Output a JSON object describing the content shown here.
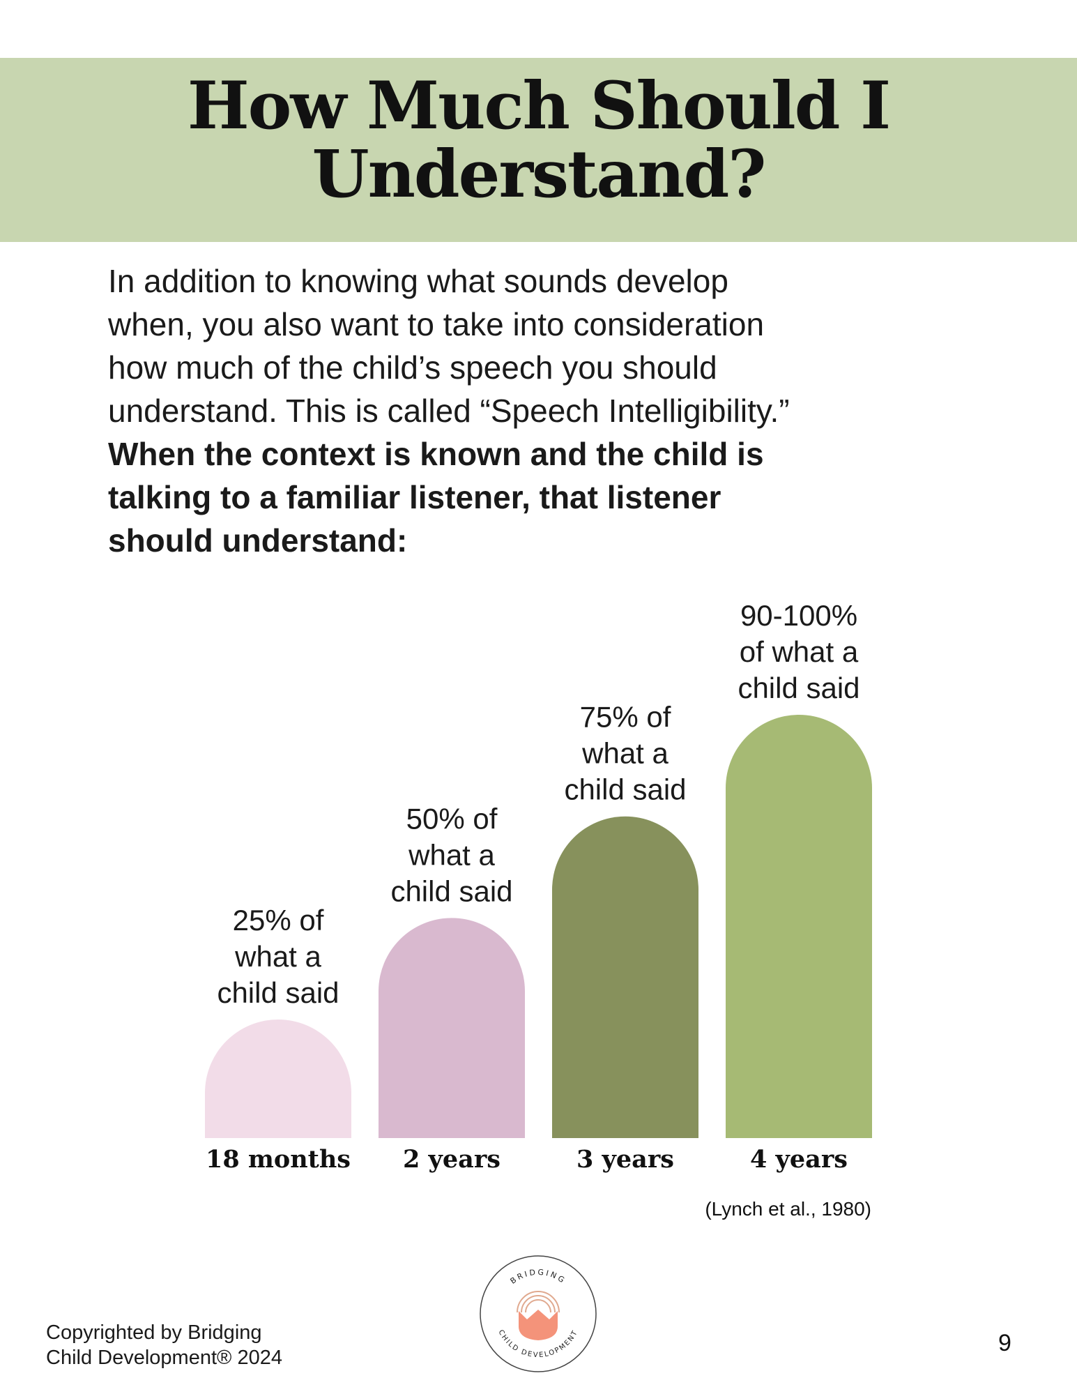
{
  "header": {
    "title_line1": "How Much Should I",
    "title_line2": "Understand?",
    "banner_color": "#c8d6b0"
  },
  "intro": {
    "lines": [
      "In addition to knowing what sounds develop",
      "when, you also want to take into consideration",
      "how much of the child’s speech you should",
      "understand.  This is called “Speech Intelligibility.”"
    ],
    "bold_lines": [
      "When the context is known and the child is",
      "talking to a familiar listener, that listener",
      "should understand:"
    ]
  },
  "chart_data": {
    "type": "bar",
    "categories": [
      "18 months",
      "2 years",
      "3 years",
      "4 years"
    ],
    "values": [
      25,
      50,
      75,
      100
    ],
    "value_labels": [
      [
        "25% of",
        "what a",
        "child said"
      ],
      [
        "50% of",
        "what a",
        "child said"
      ],
      [
        "75% of",
        "what a",
        "child said"
      ],
      [
        "90-100%",
        "of what a",
        "child said"
      ]
    ],
    "colors": [
      "#f2dce8",
      "#d9b9cf",
      "#87915c",
      "#a6ba74"
    ],
    "ylim": [
      0,
      100
    ],
    "bar_shape": "rounded-top arch",
    "grid": false
  },
  "citation": "(Lynch et al., 1980)",
  "footer": {
    "copyright_line1": "Copyrighted by Bridging",
    "copyright_line2": "Child Development®  2024",
    "page_number": "9",
    "logo": {
      "top_text": "BRIDGING",
      "bottom_text": "CHILD DEVELOPMENT",
      "icon": "tulip-icon",
      "color": "#f4937a"
    }
  }
}
